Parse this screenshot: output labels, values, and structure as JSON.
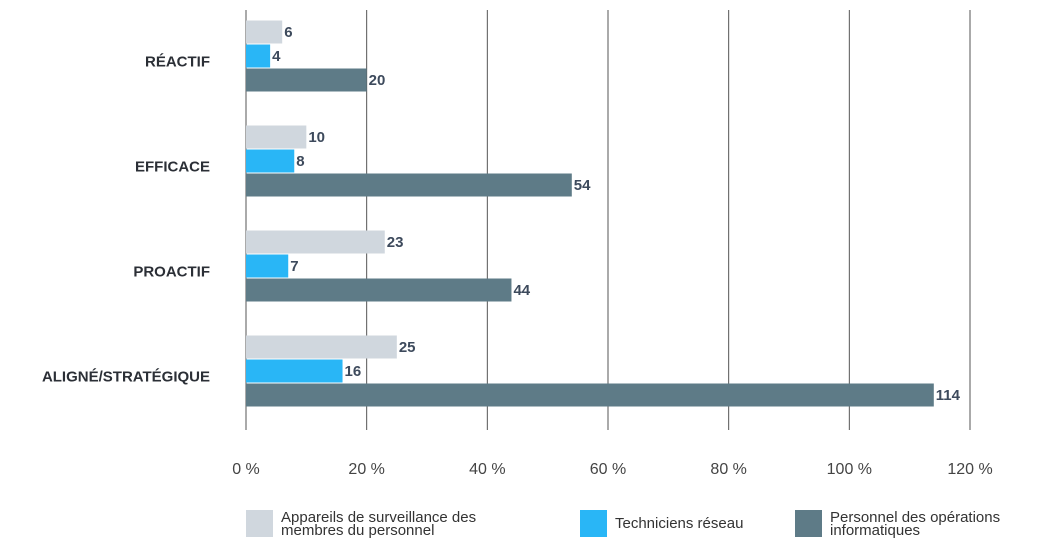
{
  "chart_data": {
    "type": "bar",
    "orientation": "horizontal",
    "categories": [
      "RÉACTIF",
      "EFFICACE",
      "PROACTIF",
      "ALIGNÉ/STRATÉGIQUE"
    ],
    "series": [
      {
        "name": "Appareils de surveillance des membres du personnel",
        "color": "#d0d7de",
        "values": [
          6,
          10,
          23,
          25
        ]
      },
      {
        "name": "Techniciens réseau",
        "color": "#29b6f6",
        "values": [
          4,
          8,
          7,
          16
        ]
      },
      {
        "name": "Personnel des opérations informatiques",
        "color": "#5e7b87",
        "values": [
          20,
          54,
          44,
          114
        ]
      }
    ],
    "xlim": [
      0,
      120
    ],
    "xticks": [
      {
        "value": 0,
        "label": "0 %"
      },
      {
        "value": 20,
        "label": "20 %"
      },
      {
        "value": 40,
        "label": "40 %"
      },
      {
        "value": 60,
        "label": "60 %"
      },
      {
        "value": 80,
        "label": "80 %"
      },
      {
        "value": 100,
        "label": "100 %"
      },
      {
        "value": 120,
        "label": "120 %"
      }
    ],
    "grid": true
  }
}
